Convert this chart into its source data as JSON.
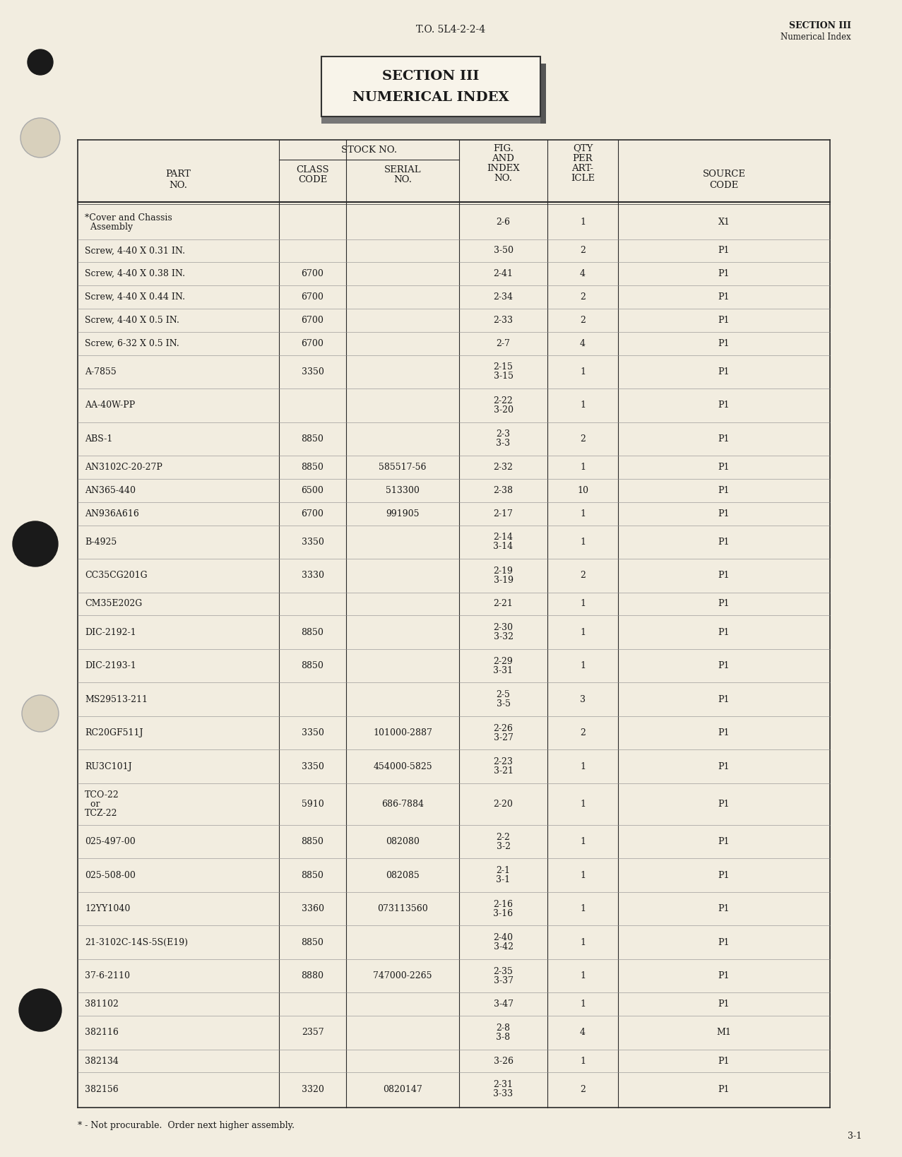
{
  "page_bg": "#f2ede0",
  "header_center": "T.O. 5L4-2-2-4",
  "header_right_line1": "SECTION III",
  "header_right_line2": "Numerical Index",
  "section_box_line1": "SECTION III",
  "section_box_line2": "NUMERICAL INDEX",
  "footer_note": "* - Not procurable.  Order next higher assembly.",
  "footer_page": "3-1",
  "rows": [
    {
      "part": "*Cover and Chassis\n  Assembly",
      "class": "",
      "serial": "",
      "fig": "2-6",
      "qty": "1",
      "source": "X1"
    },
    {
      "part": "Screw, 4-40 X 0.31 IN.",
      "class": "",
      "serial": "",
      "fig": "3-50",
      "qty": "2",
      "source": "P1"
    },
    {
      "part": "Screw, 4-40 X 0.38 IN.",
      "class": "6700",
      "serial": "",
      "fig": "2-41",
      "qty": "4",
      "source": "P1"
    },
    {
      "part": "Screw, 4-40 X 0.44 IN.",
      "class": "6700",
      "serial": "",
      "fig": "2-34",
      "qty": "2",
      "source": "P1"
    },
    {
      "part": "Screw, 4-40 X 0.5 IN.",
      "class": "6700",
      "serial": "",
      "fig": "2-33",
      "qty": "2",
      "source": "P1"
    },
    {
      "part": "Screw, 6-32 X 0.5 IN.",
      "class": "6700",
      "serial": "",
      "fig": "2-7",
      "qty": "4",
      "source": "P1"
    },
    {
      "part": "A-7855",
      "class": "3350",
      "serial": "",
      "fig": "2-15\n3-15",
      "qty": "1",
      "source": "P1"
    },
    {
      "part": "AA-40W-PP",
      "class": "",
      "serial": "",
      "fig": "2-22\n3-20",
      "qty": "1",
      "source": "P1"
    },
    {
      "part": "ABS-1",
      "class": "8850",
      "serial": "",
      "fig": "2-3\n3-3",
      "qty": "2",
      "source": "P1"
    },
    {
      "part": "AN3102C-20-27P",
      "class": "8850",
      "serial": "585517-56",
      "fig": "2-32",
      "qty": "1",
      "source": "P1"
    },
    {
      "part": "AN365-440",
      "class": "6500",
      "serial": "513300",
      "fig": "2-38",
      "qty": "10",
      "source": "P1"
    },
    {
      "part": "AN936A616",
      "class": "6700",
      "serial": "991905",
      "fig": "2-17",
      "qty": "1",
      "source": "P1"
    },
    {
      "part": "B-4925",
      "class": "3350",
      "serial": "",
      "fig": "2-14\n3-14",
      "qty": "1",
      "source": "P1"
    },
    {
      "part": "CC35CG201G",
      "class": "3330",
      "serial": "",
      "fig": "2-19\n3-19",
      "qty": "2",
      "source": "P1"
    },
    {
      "part": "CM35E202G",
      "class": "",
      "serial": "",
      "fig": "2-21",
      "qty": "1",
      "source": "P1"
    },
    {
      "part": "DIC-2192-1",
      "class": "8850",
      "serial": "",
      "fig": "2-30\n3-32",
      "qty": "1",
      "source": "P1"
    },
    {
      "part": "DIC-2193-1",
      "class": "8850",
      "serial": "",
      "fig": "2-29\n3-31",
      "qty": "1",
      "source": "P1"
    },
    {
      "part": "MS29513-211",
      "class": "",
      "serial": "",
      "fig": "2-5\n3-5",
      "qty": "3",
      "source": "P1"
    },
    {
      "part": "RC20GF511J",
      "class": "3350",
      "serial": "101000-2887",
      "fig": "2-26\n3-27",
      "qty": "2",
      "source": "P1"
    },
    {
      "part": "RU3C101J",
      "class": "3350",
      "serial": "454000-5825",
      "fig": "2-23\n3-21",
      "qty": "1",
      "source": "P1"
    },
    {
      "part": "TCO-22\n  or\nTCZ-22",
      "class": "5910",
      "serial": "686-7884",
      "fig": "2-20",
      "qty": "1",
      "source": "P1"
    },
    {
      "part": "025-497-00",
      "class": "8850",
      "serial": "082080",
      "fig": "2-2\n3-2",
      "qty": "1",
      "source": "P1"
    },
    {
      "part": "025-508-00",
      "class": "8850",
      "serial": "082085",
      "fig": "2-1\n3-1",
      "qty": "1",
      "source": "P1"
    },
    {
      "part": "12YY1040",
      "class": "3360",
      "serial": "073113560",
      "fig": "2-16\n3-16",
      "qty": "1",
      "source": "P1"
    },
    {
      "part": "21-3102C-14S-5S(E19)",
      "class": "8850",
      "serial": "",
      "fig": "2-40\n3-42",
      "qty": "1",
      "source": "P1"
    },
    {
      "part": "37-6-2110",
      "class": "8880",
      "serial": "747000-2265",
      "fig": "2-35\n3-37",
      "qty": "1",
      "source": "P1"
    },
    {
      "part": "381102",
      "class": "",
      "serial": "",
      "fig": "3-47",
      "qty": "1",
      "source": "P1"
    },
    {
      "part": "382116",
      "class": "2357",
      "serial": "",
      "fig": "2-8\n3-8",
      "qty": "4",
      "source": "M1"
    },
    {
      "part": "382134",
      "class": "",
      "serial": "",
      "fig": "3-26",
      "qty": "1",
      "source": "P1"
    },
    {
      "part": "382156",
      "class": "3320",
      "serial": "0820147",
      "fig": "2-31\n3-33",
      "qty": "2",
      "source": "P1"
    }
  ]
}
